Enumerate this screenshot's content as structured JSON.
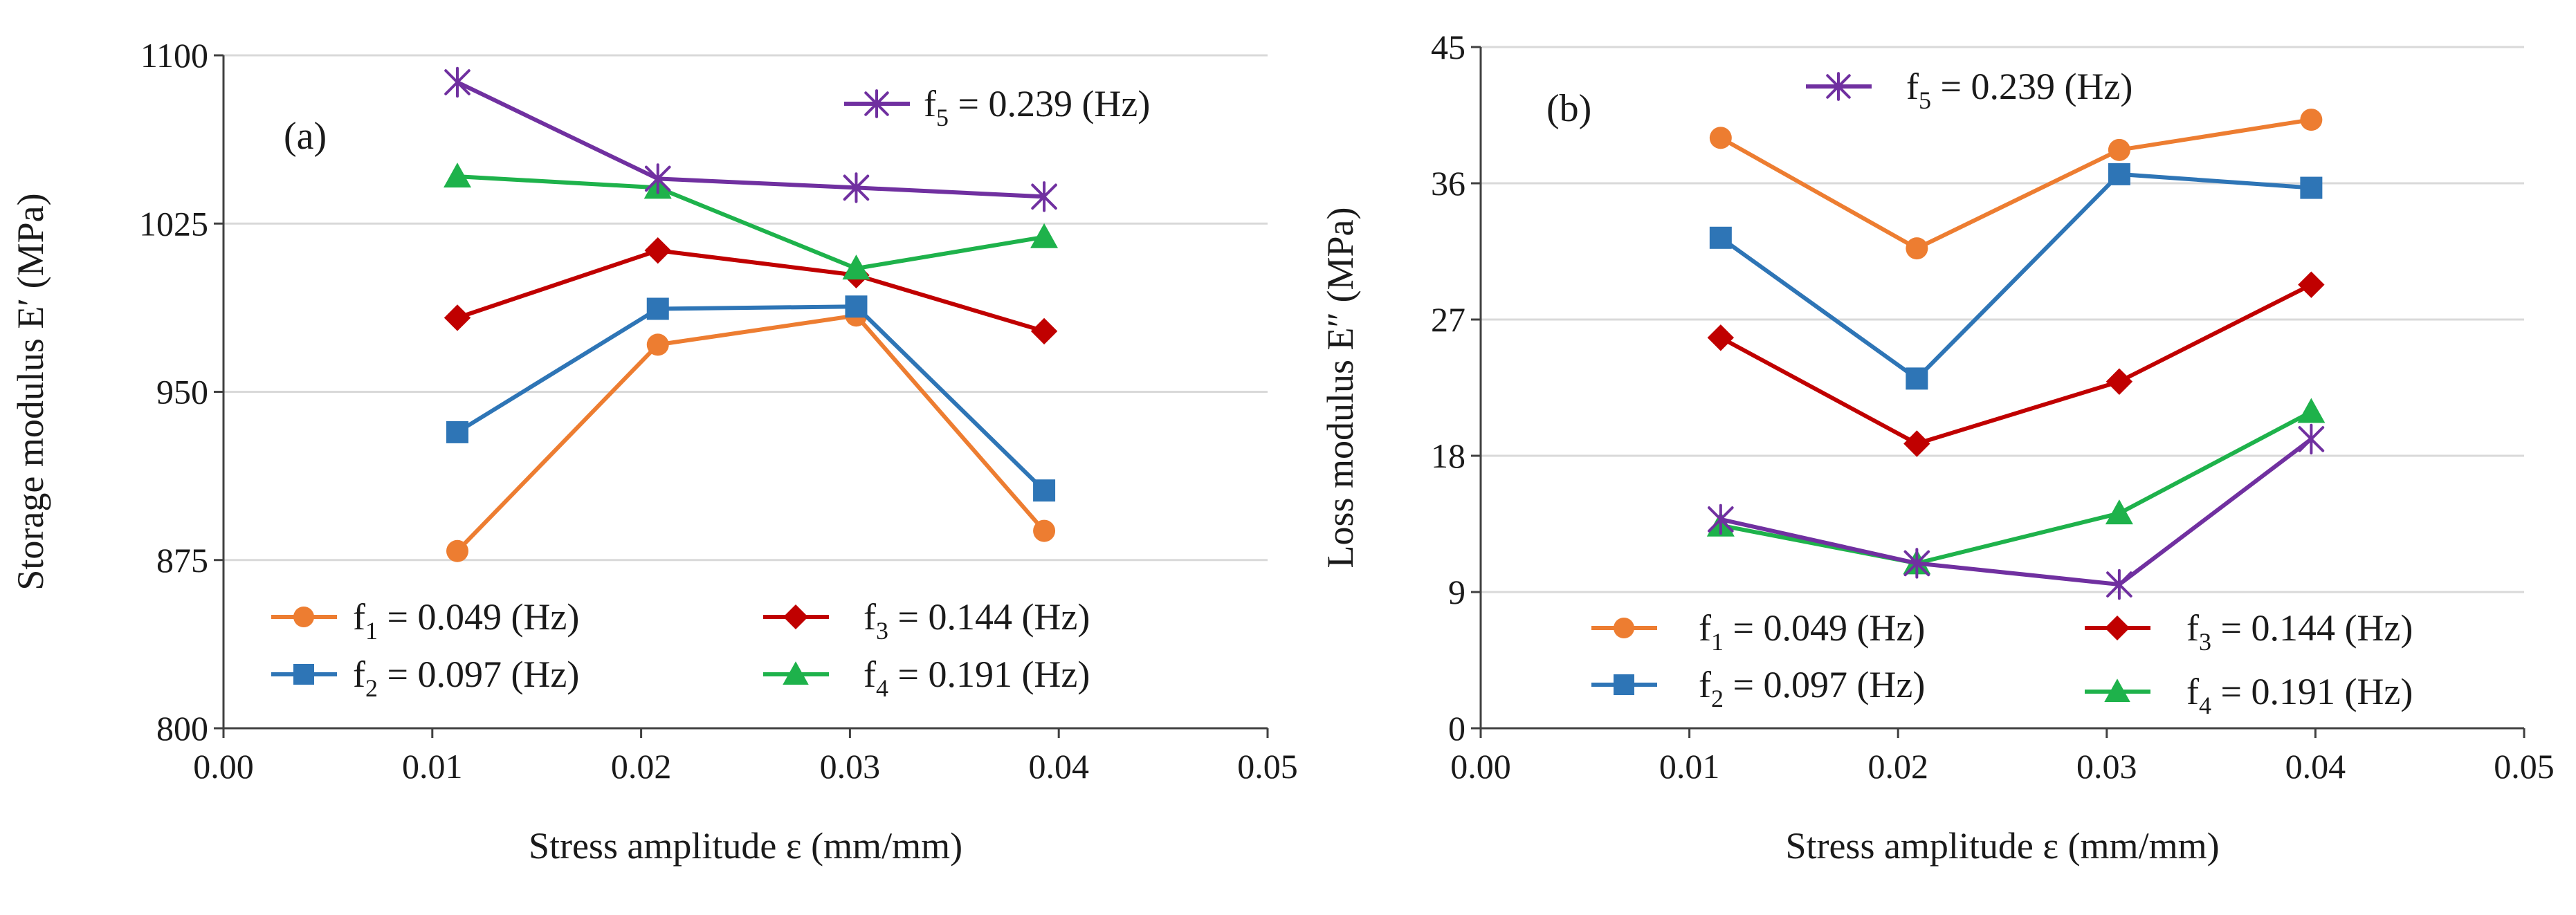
{
  "chart_data": [
    {
      "type": "line",
      "panel_label": "(a)",
      "xlabel": "Stress amplitude ε (mm/mm)",
      "ylabel": "Storage modulus E′ (MPa)",
      "xlim": [
        0.0,
        0.05
      ],
      "ylim": [
        800,
        1100
      ],
      "xticks": [
        "0.00",
        "0.01",
        "0.02",
        "0.03",
        "0.04",
        "0.05"
      ],
      "yticks": [
        "800",
        "875",
        "950",
        "1025",
        "1100"
      ],
      "xtick_values": [
        0.0,
        0.01,
        0.02,
        0.03,
        0.04,
        0.05
      ],
      "ytick_values": [
        800,
        875,
        950,
        1025,
        1100
      ],
      "x": [
        0.0112,
        0.0208,
        0.0303,
        0.0393
      ],
      "series": [
        {
          "name": "f1 = 0.049 (Hz)",
          "sym": "f",
          "sub": "1",
          "rest": " = 0.049 (Hz)",
          "color": "#ED7D31",
          "marker": "circle",
          "values": [
            879,
            971,
            984,
            888
          ]
        },
        {
          "name": "f2 = 0.097 (Hz)",
          "sym": "f",
          "sub": "2",
          "rest": " = 0.097 (Hz)",
          "color": "#2E75B6",
          "marker": "square",
          "values": [
            932,
            987,
            988,
            906
          ]
        },
        {
          "name": "f3 = 0.144 (Hz)",
          "sym": "f",
          "sub": "3",
          "rest": " = 0.144 (Hz)",
          "color": "#C00000",
          "marker": "diamond",
          "values": [
            983,
            1013,
            1002,
            977
          ]
        },
        {
          "name": "f4 = 0.191 (Hz)",
          "sym": "f",
          "sub": "4",
          "rest": " = 0.191 (Hz)",
          "color": "#1EB24B",
          "marker": "triangle",
          "values": [
            1046,
            1041,
            1005,
            1019
          ]
        },
        {
          "name": "f5 = 0.239 (Hz)",
          "sym": "f",
          "sub": "5",
          "rest": " = 0.239 (Hz)",
          "color": "#7030A0",
          "marker": "star",
          "values": [
            1088,
            1045,
            1041,
            1037
          ]
        }
      ]
    },
    {
      "type": "line",
      "panel_label": "(b)",
      "xlabel": "Stress amplitude ε (mm/mm)",
      "ylabel": "Loss modulus E″ (MPa)",
      "xlim": [
        0.0,
        0.05
      ],
      "ylim": [
        0,
        45
      ],
      "xticks": [
        "0.00",
        "0.01",
        "0.02",
        "0.03",
        "0.04",
        "0.05"
      ],
      "yticks": [
        "0",
        "9",
        "18",
        "27",
        "36",
        "45"
      ],
      "xtick_values": [
        0.0,
        0.01,
        0.02,
        0.03,
        0.04,
        0.05
      ],
      "ytick_values": [
        0,
        9,
        18,
        27,
        36,
        45
      ],
      "x": [
        0.0115,
        0.0209,
        0.0306,
        0.0398
      ],
      "series": [
        {
          "name": "f1 = 0.049 (Hz)",
          "sym": "f",
          "sub": "1",
          "rest": " = 0.049 (Hz)",
          "color": "#ED7D31",
          "marker": "circle",
          "values": [
            39.0,
            31.7,
            38.2,
            40.2
          ]
        },
        {
          "name": "f2 = 0.097 (Hz)",
          "sym": "f",
          "sub": "2",
          "rest": " = 0.097 (Hz)",
          "color": "#2E75B6",
          "marker": "square",
          "values": [
            32.4,
            23.1,
            36.6,
            35.7
          ]
        },
        {
          "name": "f3 = 0.144 (Hz)",
          "sym": "f",
          "sub": "3",
          "rest": " = 0.144 (Hz)",
          "color": "#C00000",
          "marker": "diamond",
          "values": [
            25.8,
            18.8,
            22.9,
            29.3
          ]
        },
        {
          "name": "f4 = 0.191 (Hz)",
          "sym": "f",
          "sub": "4",
          "rest": " = 0.191 (Hz)",
          "color": "#1EB24B",
          "marker": "triangle",
          "values": [
            13.4,
            10.9,
            14.2,
            20.9
          ]
        },
        {
          "name": "f5 = 0.239 (Hz)",
          "sym": "f",
          "sub": "5",
          "rest": " = 0.239 (Hz)",
          "color": "#7030A0",
          "marker": "star",
          "values": [
            13.8,
            10.9,
            9.5,
            19.1
          ]
        }
      ]
    }
  ]
}
